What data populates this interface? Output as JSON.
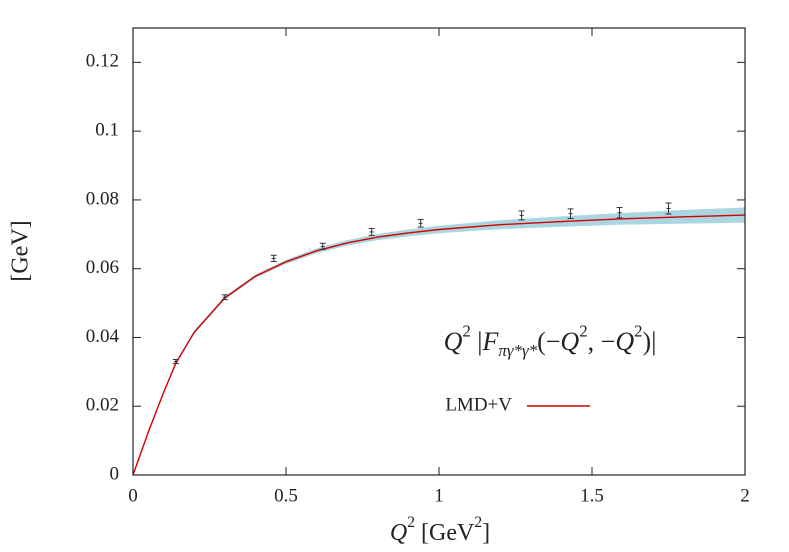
{
  "chart_data": {
    "type": "line",
    "xlabel": [
      {
        "text": "Q",
        "style": "italic"
      },
      {
        "text": "2",
        "style": "sup"
      },
      {
        "text": " [GeV",
        "style": "normal"
      },
      {
        "text": "2",
        "style": "sup"
      },
      {
        "text": "]",
        "style": "normal"
      }
    ],
    "ylabel": "[GeV]",
    "annotation": [
      {
        "text": "Q",
        "style": "italic"
      },
      {
        "text": "2",
        "style": "sup"
      },
      {
        "text": " |",
        "style": "normal"
      },
      {
        "text": "F",
        "style": "italic"
      },
      {
        "text": "πγ*γ*",
        "style": "sub"
      },
      {
        "text": "(−",
        "style": "normal"
      },
      {
        "text": "Q",
        "style": "italic"
      },
      {
        "text": "2",
        "style": "sup"
      },
      {
        "text": ", −",
        "style": "normal"
      },
      {
        "text": "Q",
        "style": "italic"
      },
      {
        "text": "2",
        "style": "sup"
      },
      {
        "text": ")|",
        "style": "normal"
      }
    ],
    "xlim": [
      0,
      2
    ],
    "ylim": [
      0,
      0.13
    ],
    "xticks": [
      0,
      0.5,
      1,
      1.5,
      2
    ],
    "yticks": [
      0,
      0.02,
      0.04,
      0.06,
      0.08,
      0.1,
      0.12
    ],
    "x": [
      0,
      0.05,
      0.1,
      0.14,
      0.2,
      0.3,
      0.4,
      0.5,
      0.6,
      0.7,
      0.8,
      0.9,
      1.0,
      1.2,
      1.4,
      1.6,
      1.8,
      2.0
    ],
    "series": [
      {
        "name": "LMD+V",
        "color": "#d40000",
        "values": [
          0,
          0.0125,
          0.024,
          0.0325,
          0.0415,
          0.0515,
          0.0578,
          0.062,
          0.0652,
          0.0675,
          0.0692,
          0.0704,
          0.0714,
          0.0728,
          0.0737,
          0.0745,
          0.0751,
          0.0756
        ]
      }
    ],
    "band": {
      "color": "#a9d6e0",
      "lower": [
        0,
        0.0123,
        0.0237,
        0.0321,
        0.041,
        0.051,
        0.0573,
        0.0614,
        0.0645,
        0.0667,
        0.0683,
        0.0694,
        0.0703,
        0.0715,
        0.0722,
        0.0728,
        0.0731,
        0.0734
      ],
      "upper": [
        0,
        0.0127,
        0.0243,
        0.0329,
        0.042,
        0.052,
        0.0583,
        0.0626,
        0.0659,
        0.0683,
        0.0701,
        0.0714,
        0.0725,
        0.0741,
        0.0752,
        0.0762,
        0.0771,
        0.0778
      ]
    },
    "points": {
      "color": "#333333",
      "x": [
        0.14,
        0.3,
        0.46,
        0.62,
        0.78,
        0.94,
        1.27,
        1.43,
        1.59,
        1.75
      ],
      "values": [
        0.033,
        0.0517,
        0.063,
        0.0665,
        0.0707,
        0.0732,
        0.0755,
        0.076,
        0.0763,
        0.0775
      ],
      "errors": [
        0.0006,
        0.0007,
        0.0009,
        0.0009,
        0.001,
        0.0011,
        0.0013,
        0.0014,
        0.0015,
        0.0016
      ]
    }
  }
}
